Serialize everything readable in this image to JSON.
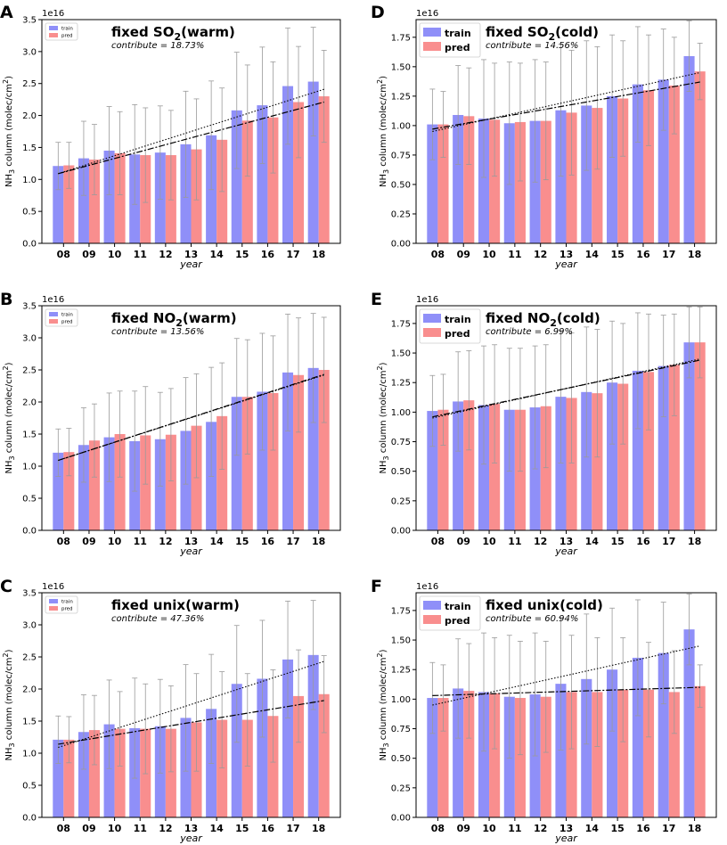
{
  "chart_data": [
    {
      "panel": "A",
      "type": "bar",
      "title": "fixed SO2(warm)",
      "title_main": "fixed SO",
      "title_sub": "2",
      "title_end": "(warm)",
      "contribute": "contribute = 18.73%",
      "xlabel": "year",
      "ylabel_pre": "NH",
      "ylabel_sub": "3",
      "ylabel_mid": " column (molec/cm",
      "ylabel_sup": "2",
      "ylabel_end": ")",
      "offset_label": "1e16",
      "ylim": [
        0,
        3.5
      ],
      "yticks": [
        "0.0",
        "0.5",
        "1.0",
        "1.5",
        "2.0",
        "2.5",
        "3.0",
        "3.5"
      ],
      "categories": [
        "08",
        "09",
        "10",
        "11",
        "12",
        "13",
        "14",
        "15",
        "16",
        "17",
        "18"
      ],
      "legend": [
        "train",
        "pred"
      ],
      "series": [
        {
          "name": "train",
          "color": "#8f8ff8",
          "values": [
            1.21,
            1.33,
            1.45,
            1.39,
            1.42,
            1.55,
            1.69,
            2.08,
            2.16,
            2.46,
            2.53
          ],
          "errors": [
            0.37,
            0.58,
            0.69,
            0.78,
            0.73,
            0.83,
            0.85,
            0.91,
            0.91,
            0.91,
            0.85
          ]
        },
        {
          "name": "pred",
          "color": "#f98e8e",
          "values": [
            1.22,
            1.31,
            1.41,
            1.38,
            1.38,
            1.47,
            1.62,
            1.92,
            1.97,
            2.21,
            2.3
          ],
          "errors": [
            0.36,
            0.55,
            0.65,
            0.74,
            0.7,
            0.79,
            0.81,
            0.87,
            0.87,
            0.87,
            0.72
          ]
        }
      ],
      "trend_train": [
        1.09,
        2.41
      ],
      "trend_pred": [
        1.09,
        2.21
      ]
    },
    {
      "panel": "B",
      "type": "bar",
      "title": "fixed NO2(warm)",
      "title_main": "fixed NO",
      "title_sub": "2",
      "title_end": "(warm)",
      "contribute": "contribute = 13.56%",
      "xlabel": "year",
      "ylabel_pre": "NH",
      "ylabel_sub": "3",
      "ylabel_mid": " column (molec/cm",
      "ylabel_sup": "2",
      "ylabel_end": ")",
      "offset_label": "1e16",
      "ylim": [
        0,
        3.5
      ],
      "yticks": [
        "0.0",
        "0.5",
        "1.0",
        "1.5",
        "2.0",
        "2.5",
        "3.0",
        "3.5"
      ],
      "categories": [
        "08",
        "09",
        "10",
        "11",
        "12",
        "13",
        "14",
        "15",
        "16",
        "17",
        "18"
      ],
      "legend": [
        "train",
        "pred"
      ],
      "series": [
        {
          "name": "train",
          "color": "#8f8ff8",
          "values": [
            1.21,
            1.33,
            1.45,
            1.39,
            1.42,
            1.55,
            1.69,
            2.08,
            2.16,
            2.46,
            2.53
          ],
          "errors": [
            0.37,
            0.58,
            0.69,
            0.78,
            0.73,
            0.83,
            0.85,
            0.91,
            0.91,
            0.91,
            0.85
          ]
        },
        {
          "name": "pred",
          "color": "#f98e8e",
          "values": [
            1.22,
            1.4,
            1.5,
            1.48,
            1.49,
            1.63,
            1.78,
            2.08,
            2.14,
            2.42,
            2.5
          ],
          "errors": [
            0.37,
            0.57,
            0.67,
            0.76,
            0.72,
            0.81,
            0.83,
            0.89,
            0.89,
            0.89,
            0.82
          ]
        }
      ],
      "trend_train": [
        1.09,
        2.42
      ],
      "trend_pred": [
        1.09,
        2.43
      ]
    },
    {
      "panel": "C",
      "type": "bar",
      "title": "fixed unix(warm)",
      "title_main": "fixed unix(warm)",
      "title_sub": "",
      "title_end": "",
      "contribute": "contribute = 47.36%",
      "xlabel": "year",
      "ylabel_pre": "NH",
      "ylabel_sub": "3",
      "ylabel_mid": " column (molec/cm",
      "ylabel_sup": "2",
      "ylabel_end": ")",
      "offset_label": "1e16",
      "ylim": [
        0,
        3.5
      ],
      "yticks": [
        "0.0",
        "0.5",
        "1.0",
        "1.5",
        "2.0",
        "2.5",
        "3.0",
        "3.5"
      ],
      "categories": [
        "08",
        "09",
        "10",
        "11",
        "12",
        "13",
        "14",
        "15",
        "16",
        "17",
        "18"
      ],
      "legend": [
        "train",
        "pred"
      ],
      "series": [
        {
          "name": "train",
          "color": "#8f8ff8",
          "values": [
            1.21,
            1.33,
            1.45,
            1.39,
            1.42,
            1.55,
            1.69,
            2.08,
            2.16,
            2.46,
            2.53
          ],
          "errors": [
            0.37,
            0.58,
            0.69,
            0.78,
            0.73,
            0.83,
            0.85,
            0.91,
            0.91,
            0.91,
            0.85
          ]
        },
        {
          "name": "pred",
          "color": "#f98e8e",
          "values": [
            1.21,
            1.36,
            1.38,
            1.38,
            1.38,
            1.48,
            1.52,
            1.52,
            1.58,
            1.89,
            1.92
          ],
          "errors": [
            0.36,
            0.54,
            0.58,
            0.7,
            0.67,
            0.76,
            0.75,
            0.72,
            0.72,
            0.72,
            0.6
          ]
        }
      ],
      "trend_train": [
        1.09,
        2.43
      ],
      "trend_pred": [
        1.14,
        1.82
      ]
    },
    {
      "panel": "D",
      "type": "bar",
      "title": "fixed SO2(cold)",
      "title_main": "fixed SO",
      "title_sub": "2",
      "title_end": "(cold)",
      "contribute": "contribute = 14.56%",
      "xlabel": "year",
      "ylabel_pre": "NH",
      "ylabel_sub": "3",
      "ylabel_mid": " column (molec/cm",
      "ylabel_sup": "2",
      "ylabel_end": ")",
      "offset_label": "1e16",
      "ylim": [
        0,
        1.9
      ],
      "yticks": [
        "0.00",
        "0.25",
        "0.50",
        "0.75",
        "1.00",
        "1.25",
        "1.50",
        "1.75"
      ],
      "categories": [
        "08",
        "09",
        "10",
        "11",
        "12",
        "13",
        "14",
        "15",
        "16",
        "17",
        "18"
      ],
      "legend": [
        "train",
        "pred"
      ],
      "series": [
        {
          "name": "train",
          "color": "#8f8ff8",
          "values": [
            1.01,
            1.09,
            1.06,
            1.02,
            1.04,
            1.13,
            1.17,
            1.25,
            1.35,
            1.39,
            1.59
          ],
          "errors": [
            0.3,
            0.42,
            0.5,
            0.52,
            0.52,
            0.56,
            0.55,
            0.52,
            0.49,
            0.43,
            0.3
          ]
        },
        {
          "name": "pred",
          "color": "#f98e8e",
          "values": [
            1.01,
            1.08,
            1.05,
            1.03,
            1.04,
            1.11,
            1.15,
            1.23,
            1.3,
            1.34,
            1.46
          ],
          "errors": [
            0.28,
            0.41,
            0.48,
            0.5,
            0.5,
            0.53,
            0.52,
            0.49,
            0.47,
            0.41,
            0.24
          ]
        }
      ],
      "trend_train": [
        0.95,
        1.45
      ],
      "trend_pred": [
        0.97,
        1.37
      ]
    },
    {
      "panel": "E",
      "type": "bar",
      "title": "fixed NO2(cold)",
      "title_main": "fixed NO",
      "title_sub": "2",
      "title_end": "(cold)",
      "contribute": "contribute = 6.99%",
      "xlabel": "year",
      "ylabel_pre": "NH",
      "ylabel_sub": "3",
      "ylabel_mid": " column (molec/cm",
      "ylabel_sup": "2",
      "ylabel_end": ")",
      "offset_label": "1e16",
      "ylim": [
        0,
        1.9
      ],
      "yticks": [
        "0.00",
        "0.25",
        "0.50",
        "0.75",
        "1.00",
        "1.25",
        "1.50",
        "1.75"
      ],
      "categories": [
        "08",
        "09",
        "10",
        "11",
        "12",
        "13",
        "14",
        "15",
        "16",
        "17",
        "18"
      ],
      "legend": [
        "train",
        "pred"
      ],
      "series": [
        {
          "name": "train",
          "color": "#8f8ff8",
          "values": [
            1.01,
            1.09,
            1.06,
            1.02,
            1.04,
            1.13,
            1.17,
            1.25,
            1.35,
            1.39,
            1.59
          ],
          "errors": [
            0.3,
            0.42,
            0.5,
            0.52,
            0.52,
            0.56,
            0.55,
            0.52,
            0.49,
            0.43,
            0.3
          ]
        },
        {
          "name": "pred",
          "color": "#f98e8e",
          "values": [
            1.02,
            1.1,
            1.07,
            1.02,
            1.05,
            1.12,
            1.16,
            1.24,
            1.34,
            1.4,
            1.59
          ],
          "errors": [
            0.3,
            0.42,
            0.5,
            0.52,
            0.52,
            0.55,
            0.54,
            0.51,
            0.49,
            0.43,
            0.3
          ]
        }
      ],
      "trend_train": [
        0.95,
        1.45
      ],
      "trend_pred": [
        0.96,
        1.44
      ]
    },
    {
      "panel": "F",
      "type": "bar",
      "title": "fixed unix(cold)",
      "title_main": "fixed unix(cold)",
      "title_sub": "",
      "title_end": "",
      "contribute": "contribute = 60.94%",
      "xlabel": "year",
      "ylabel_pre": "NH",
      "ylabel_sub": "3",
      "ylabel_mid": " column (molec/cm",
      "ylabel_sup": "2",
      "ylabel_end": ")",
      "offset_label": "1e16",
      "ylim": [
        0,
        1.9
      ],
      "yticks": [
        "0.00",
        "0.25",
        "0.50",
        "0.75",
        "1.00",
        "1.25",
        "1.50",
        "1.75"
      ],
      "categories": [
        "08",
        "09",
        "10",
        "11",
        "12",
        "13",
        "14",
        "15",
        "16",
        "17",
        "18"
      ],
      "legend": [
        "train",
        "pred"
      ],
      "series": [
        {
          "name": "train",
          "color": "#8f8ff8",
          "values": [
            1.01,
            1.09,
            1.06,
            1.02,
            1.04,
            1.13,
            1.17,
            1.25,
            1.35,
            1.39,
            1.59
          ],
          "errors": [
            0.3,
            0.42,
            0.5,
            0.52,
            0.52,
            0.56,
            0.55,
            0.52,
            0.49,
            0.43,
            0.3
          ]
        },
        {
          "name": "pred",
          "color": "#f98e8e",
          "values": [
            1.01,
            1.07,
            1.05,
            1.01,
            1.02,
            1.06,
            1.06,
            1.08,
            1.08,
            1.06,
            1.11
          ],
          "errors": [
            0.28,
            0.4,
            0.47,
            0.48,
            0.47,
            0.48,
            0.46,
            0.44,
            0.4,
            0.35,
            0.18
          ]
        }
      ],
      "trend_train": [
        0.95,
        1.45
      ],
      "trend_pred": [
        1.03,
        1.1
      ]
    }
  ]
}
